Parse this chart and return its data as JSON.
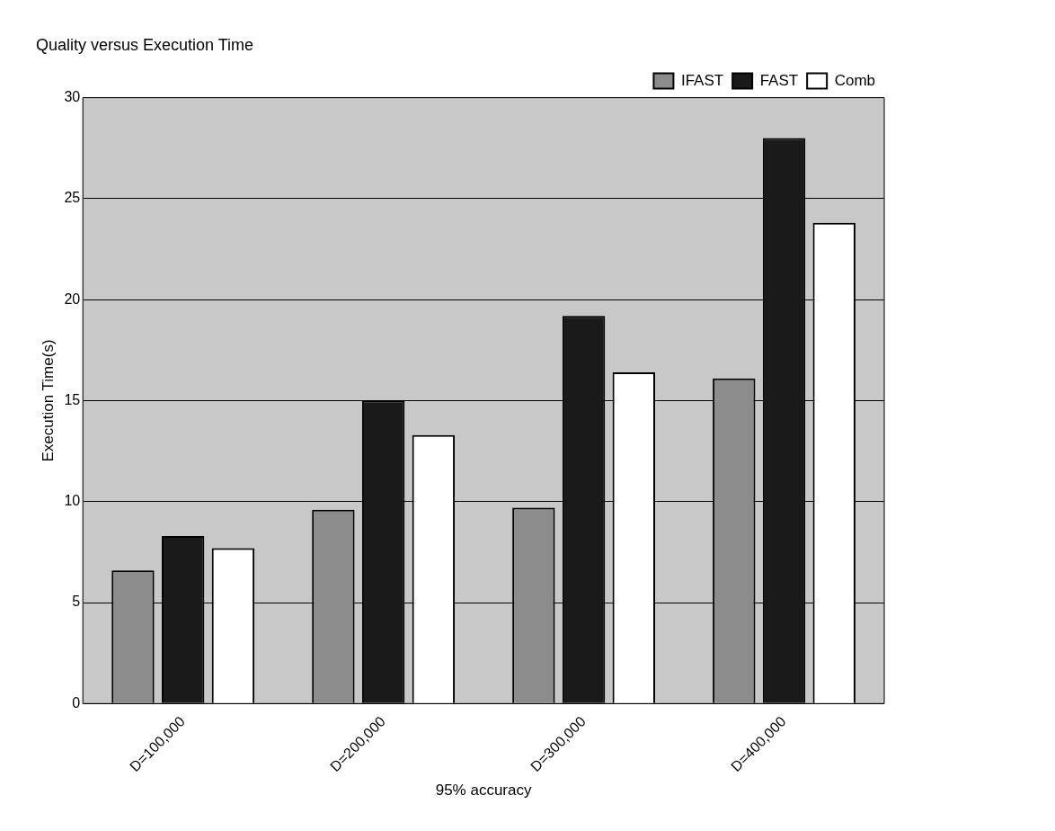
{
  "chart_data": {
    "type": "bar",
    "title": "Quality versus Execution Time",
    "xlabel": "95% accuracy",
    "ylabel": "Execution Time(s)",
    "categories": [
      "D=100,000",
      "D=200,000",
      "D=300,000",
      "D=400,000"
    ],
    "series": [
      {
        "name": "IFAST",
        "color": "#8c8c8c",
        "values": [
          6.6,
          9.6,
          9.7,
          16.1
        ]
      },
      {
        "name": "FAST",
        "color": "#1a1a1a",
        "values": [
          8.3,
          15.0,
          19.2,
          28.0
        ]
      },
      {
        "name": "Comb",
        "color": "#ffffff",
        "values": [
          7.7,
          13.3,
          16.4,
          23.8
        ]
      }
    ],
    "ylim": [
      0,
      30
    ],
    "yticks": [
      0,
      5,
      10,
      15,
      20,
      25,
      30
    ],
    "grid": "y",
    "legend": "top right"
  }
}
